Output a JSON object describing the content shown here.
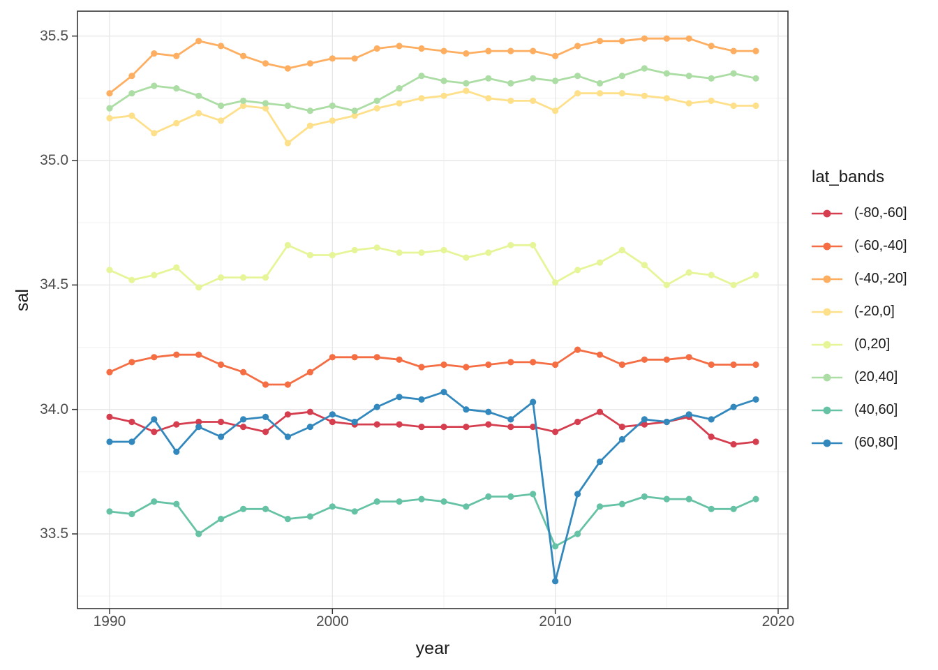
{
  "chart_data": {
    "type": "line",
    "title": "",
    "xlabel": "year",
    "ylabel": "sal",
    "legend_title": "lat_bands",
    "legend_position": "right",
    "grid": true,
    "background": "#ffffff",
    "xlim": [
      1988.56,
      2020.44
    ],
    "ylim": [
      33.2,
      35.6
    ],
    "x_ticks": [
      {
        "label": "1990",
        "value": 1990
      },
      {
        "label": "2000",
        "value": 2000
      },
      {
        "label": "2010",
        "value": 2010
      },
      {
        "label": "2020",
        "value": 2020
      }
    ],
    "y_ticks": [
      {
        "label": "33.5",
        "value": 33.5
      },
      {
        "label": "34.0",
        "value": 34.0
      },
      {
        "label": "34.5",
        "value": 34.5
      },
      {
        "label": "35.0",
        "value": 35.0
      },
      {
        "label": "35.5",
        "value": 35.5
      }
    ],
    "x_minor_gridlines": [
      1995,
      2005,
      2015
    ],
    "y_minor_gridlines": [
      33.25,
      33.75,
      34.25,
      34.75,
      35.25
    ],
    "x": [
      1990,
      1991,
      1992,
      1993,
      1994,
      1995,
      1996,
      1997,
      1998,
      1999,
      2000,
      2001,
      2002,
      2003,
      2004,
      2005,
      2006,
      2007,
      2008,
      2009,
      2010,
      2011,
      2012,
      2013,
      2014,
      2015,
      2016,
      2017,
      2018,
      2019
    ],
    "series": [
      {
        "name": "(-80,-60]",
        "color": "#D53E4F",
        "values": [
          33.97,
          33.95,
          33.91,
          33.94,
          33.95,
          33.95,
          33.93,
          33.91,
          33.98,
          33.99,
          33.95,
          33.94,
          33.94,
          33.94,
          33.93,
          33.93,
          33.93,
          33.94,
          33.93,
          33.93,
          33.91,
          33.95,
          33.99,
          33.93,
          33.94,
          33.95,
          33.97,
          33.89,
          33.86,
          33.87
        ]
      },
      {
        "name": "(-60,-40]",
        "color": "#F46D43",
        "values": [
          34.15,
          34.19,
          34.21,
          34.22,
          34.22,
          34.18,
          34.15,
          34.1,
          34.1,
          34.15,
          34.21,
          34.21,
          34.21,
          34.2,
          34.17,
          34.18,
          34.17,
          34.18,
          34.19,
          34.19,
          34.18,
          34.24,
          34.22,
          34.18,
          34.2,
          34.2,
          34.21,
          34.18,
          34.18,
          34.18
        ]
      },
      {
        "name": "(-40,-20]",
        "color": "#FDAE61",
        "values": [
          35.27,
          35.34,
          35.43,
          35.42,
          35.48,
          35.46,
          35.42,
          35.39,
          35.37,
          35.39,
          35.41,
          35.41,
          35.45,
          35.46,
          35.45,
          35.44,
          35.43,
          35.44,
          35.44,
          35.44,
          35.42,
          35.46,
          35.48,
          35.48,
          35.49,
          35.49,
          35.49,
          35.46,
          35.44,
          35.44
        ]
      },
      {
        "name": "(-20,0]",
        "color": "#FEE08B",
        "values": [
          35.17,
          35.18,
          35.11,
          35.15,
          35.19,
          35.16,
          35.22,
          35.21,
          35.07,
          35.14,
          35.16,
          35.18,
          35.21,
          35.23,
          35.25,
          35.26,
          35.28,
          35.25,
          35.24,
          35.24,
          35.2,
          35.27,
          35.27,
          35.27,
          35.26,
          35.25,
          35.23,
          35.24,
          35.22,
          35.22
        ]
      },
      {
        "name": "(0,20]",
        "color": "#E6F598",
        "values": [
          34.56,
          34.52,
          34.54,
          34.57,
          34.49,
          34.53,
          34.53,
          34.53,
          34.66,
          34.62,
          34.62,
          34.64,
          34.65,
          34.63,
          34.63,
          34.64,
          34.61,
          34.63,
          34.66,
          34.66,
          34.51,
          34.56,
          34.59,
          34.64,
          34.58,
          34.5,
          34.55,
          34.54,
          34.5,
          34.54
        ]
      },
      {
        "name": "(20,40]",
        "color": "#ABDDA4",
        "values": [
          35.21,
          35.27,
          35.3,
          35.29,
          35.26,
          35.22,
          35.24,
          35.23,
          35.22,
          35.2,
          35.22,
          35.2,
          35.24,
          35.29,
          35.34,
          35.32,
          35.31,
          35.33,
          35.31,
          35.33,
          35.32,
          35.34,
          35.31,
          35.34,
          35.37,
          35.35,
          35.34,
          35.33,
          35.35,
          35.33
        ]
      },
      {
        "name": "(40,60]",
        "color": "#66C2A5",
        "values": [
          33.59,
          33.58,
          33.63,
          33.62,
          33.5,
          33.56,
          33.6,
          33.6,
          33.56,
          33.57,
          33.61,
          33.59,
          33.63,
          33.63,
          33.64,
          33.63,
          33.61,
          33.65,
          33.65,
          33.66,
          33.45,
          33.5,
          33.61,
          33.62,
          33.65,
          33.64,
          33.64,
          33.6,
          33.6,
          33.64
        ]
      },
      {
        "name": "(60,80]",
        "color": "#3288BD",
        "values": [
          33.87,
          33.87,
          33.96,
          33.83,
          33.93,
          33.89,
          33.96,
          33.97,
          33.89,
          33.93,
          33.98,
          33.95,
          34.01,
          34.05,
          34.04,
          34.07,
          34.0,
          33.99,
          33.96,
          34.03,
          33.31,
          33.66,
          33.79,
          33.88,
          33.96,
          33.95,
          33.98,
          33.96,
          34.01,
          34.04
        ]
      }
    ],
    "theme": {
      "panel_border": "#333333",
      "grid_major": "#e7e7e7",
      "grid_minor": "#f2f2f2",
      "tick_color": "#333333",
      "tick_label_color": "#4d4d4d",
      "title_color": "#1a1a1a"
    }
  }
}
